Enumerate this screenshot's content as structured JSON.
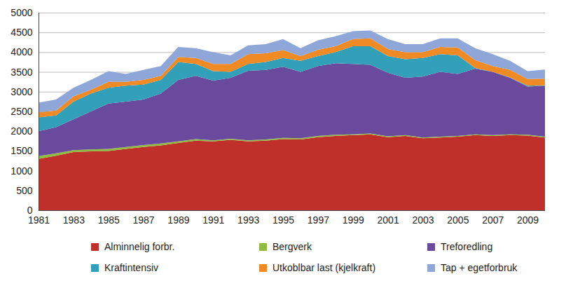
{
  "chart_data": {
    "type": "area",
    "stacked": true,
    "grid": true,
    "legend": "bottom",
    "x": [
      1981,
      1982,
      1983,
      1984,
      1985,
      1986,
      1987,
      1988,
      1989,
      1990,
      1991,
      1992,
      1993,
      1994,
      1995,
      1996,
      1997,
      1998,
      1999,
      2000,
      2001,
      2002,
      2003,
      2004,
      2005,
      2006,
      2007,
      2008,
      2009,
      2010
    ],
    "xlim": [
      1981,
      2010
    ],
    "xticks": [
      1981,
      1983,
      1985,
      1987,
      1989,
      1991,
      1993,
      1995,
      1997,
      1999,
      2001,
      2003,
      2005,
      2007,
      2009
    ],
    "ylim": [
      0,
      5000
    ],
    "yticks": [
      0,
      500,
      1000,
      1500,
      2000,
      2500,
      3000,
      3500,
      4000,
      4500,
      5000
    ],
    "series": [
      {
        "name": "Alminnelig forbr.",
        "color": "#c0302a",
        "values": [
          1300,
          1380,
          1470,
          1490,
          1500,
          1550,
          1600,
          1640,
          1700,
          1760,
          1740,
          1780,
          1740,
          1760,
          1800,
          1790,
          1850,
          1880,
          1900,
          1920,
          1850,
          1880,
          1820,
          1840,
          1860,
          1900,
          1880,
          1900,
          1890,
          1840
        ]
      },
      {
        "name": "Bergverk",
        "color": "#8fbc3f",
        "values": [
          70,
          60,
          50,
          50,
          50,
          50,
          50,
          50,
          40,
          40,
          30,
          30,
          30,
          30,
          30,
          30,
          30,
          30,
          20,
          20,
          20,
          20,
          20,
          20,
          20,
          20,
          20,
          20,
          20,
          20
        ]
      },
      {
        "name": "Treforedling",
        "color": "#6a4a9c",
        "values": [
          630,
          660,
          780,
          960,
          1150,
          1150,
          1150,
          1260,
          1560,
          1600,
          1510,
          1540,
          1760,
          1760,
          1800,
          1680,
          1770,
          1810,
          1780,
          1740,
          1610,
          1450,
          1540,
          1640,
          1570,
          1660,
          1600,
          1430,
          1220,
          1290
        ]
      },
      {
        "name": "Kraftintensiv",
        "color": "#31a0b8",
        "values": [
          350,
          300,
          450,
          450,
          400,
          400,
          380,
          350,
          450,
          300,
          240,
          150,
          170,
          200,
          220,
          280,
          250,
          280,
          450,
          470,
          420,
          470,
          470,
          450,
          470,
          20,
          0,
          10,
          20,
          10
        ]
      },
      {
        "name": "Utkoblbar last (kjelkraft)",
        "color": "#f08a24",
        "values": [
          130,
          120,
          130,
          100,
          150,
          100,
          120,
          100,
          130,
          150,
          180,
          200,
          250,
          220,
          200,
          120,
          160,
          150,
          180,
          200,
          180,
          180,
          150,
          180,
          200,
          200,
          150,
          190,
          170,
          170
        ]
      },
      {
        "name": "Tap + egetforbruk",
        "color": "#8ea6d8",
        "values": [
          240,
          280,
          220,
          250,
          270,
          200,
          250,
          250,
          250,
          250,
          300,
          220,
          220,
          230,
          280,
          200,
          240,
          250,
          200,
          200,
          250,
          200,
          200,
          220,
          230,
          300,
          300,
          230,
          200,
          230
        ]
      }
    ]
  }
}
